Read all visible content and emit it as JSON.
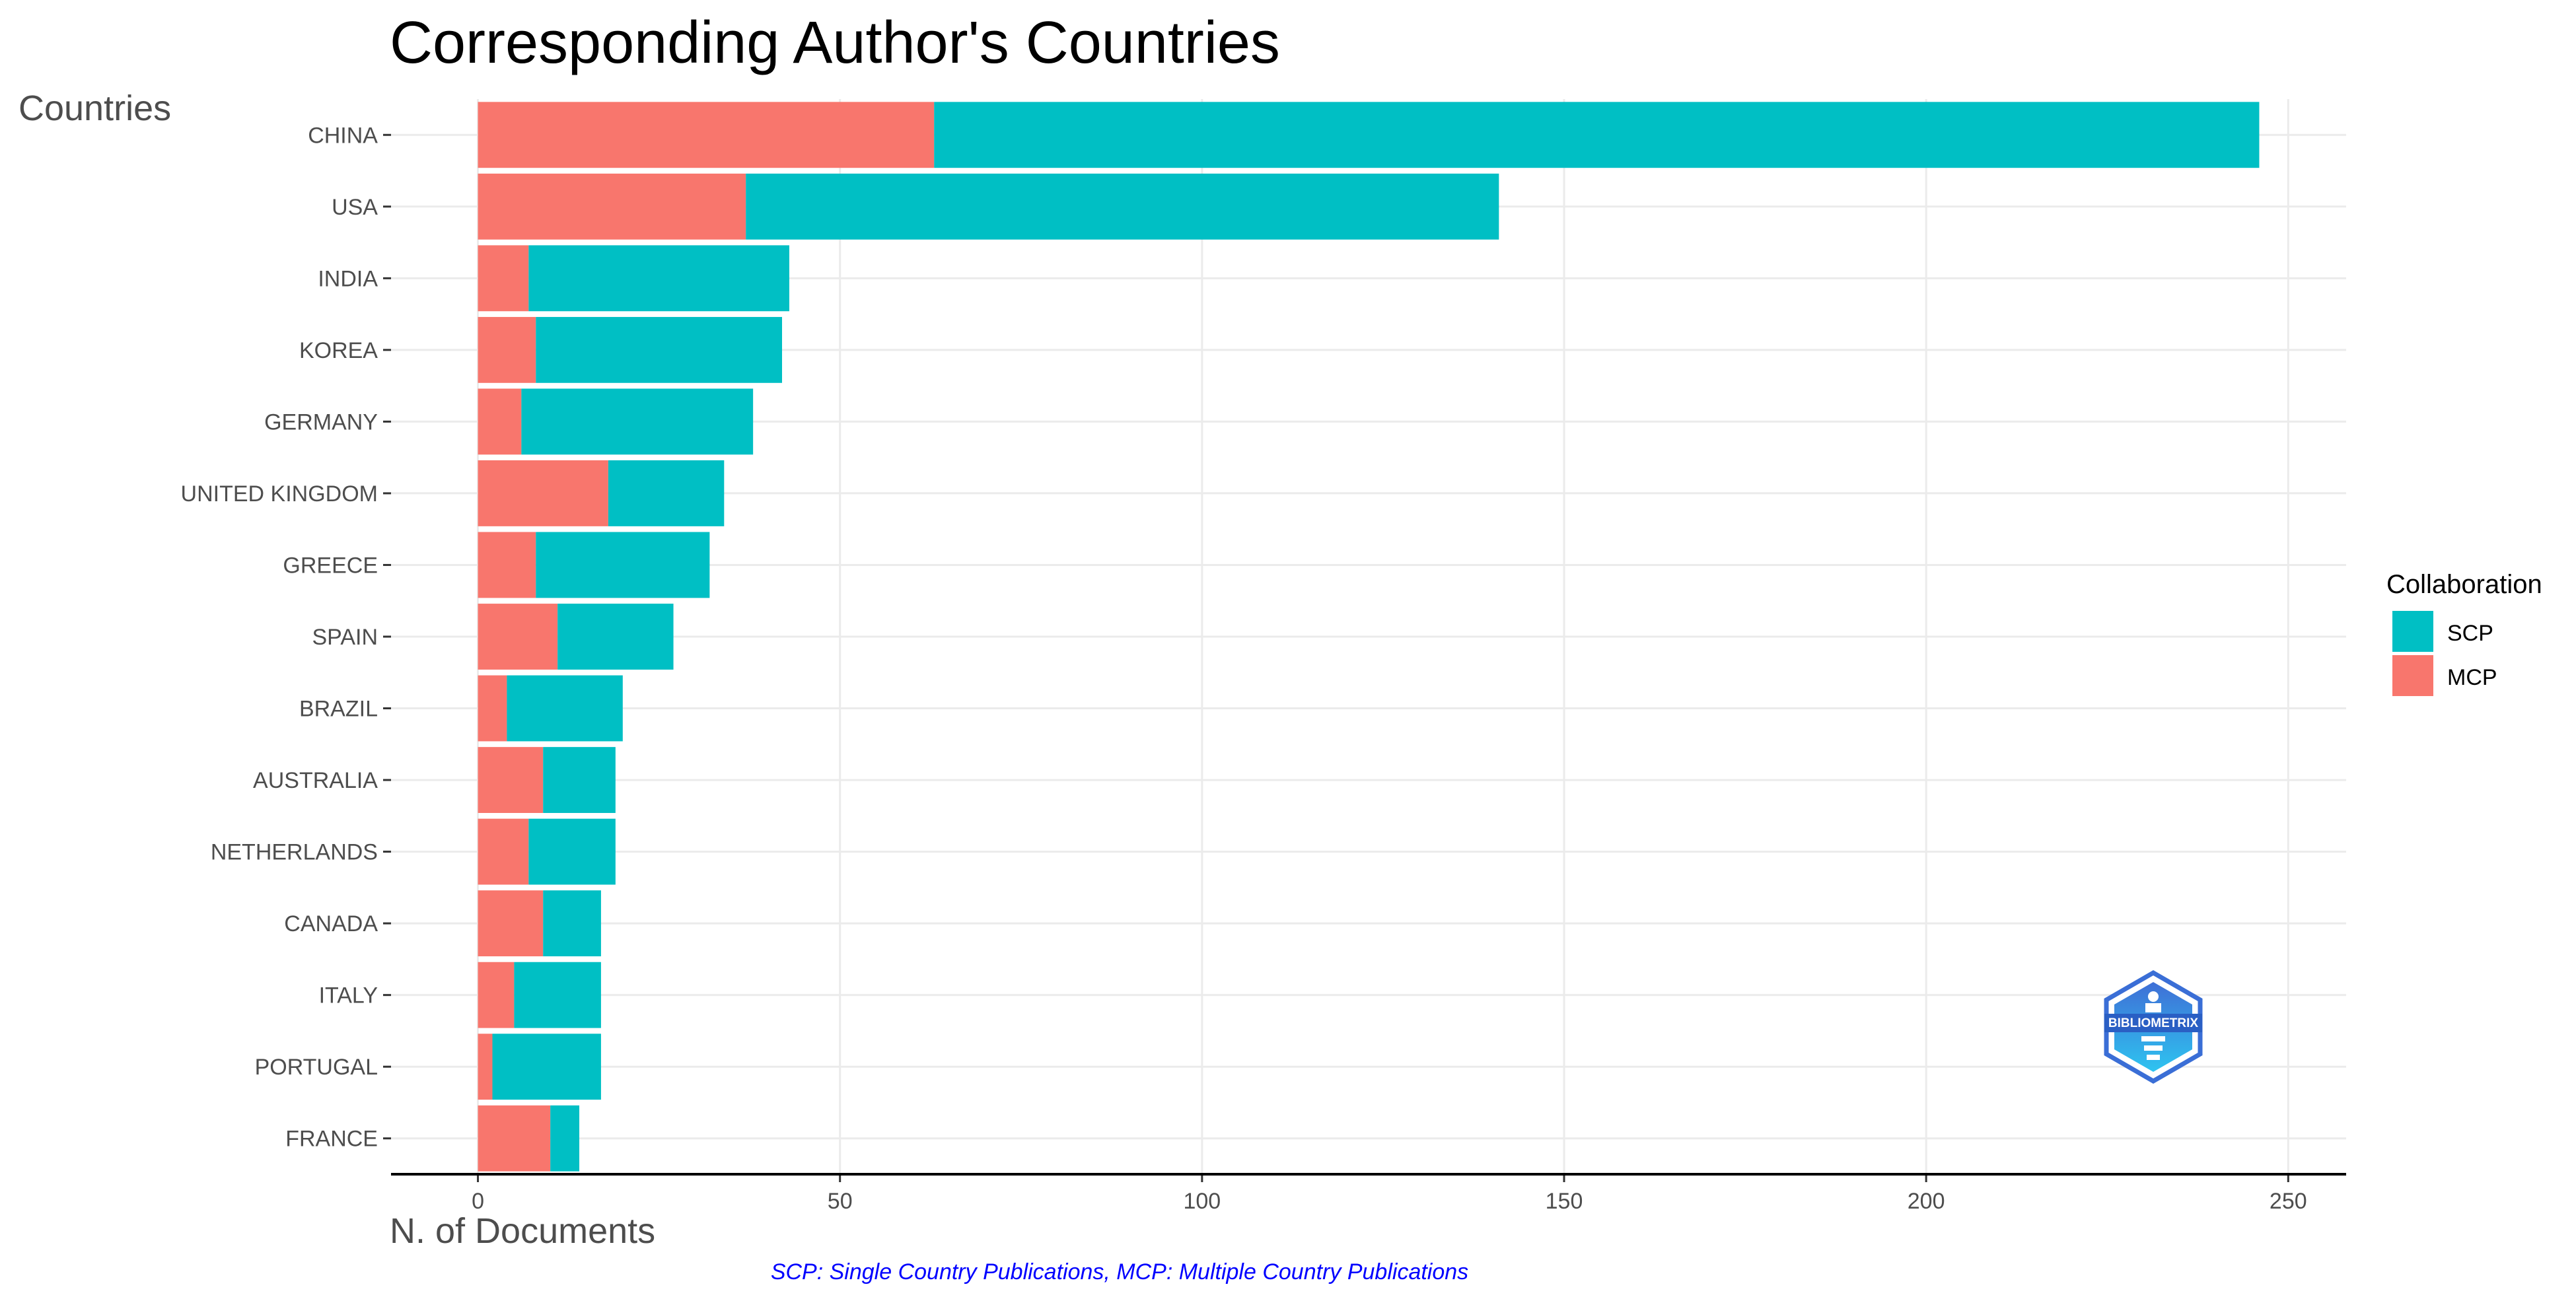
{
  "chart_data": {
    "type": "bar",
    "orientation": "horizontal",
    "stacked": true,
    "title": "Corresponding Author's Countries",
    "xlabel": "N. of Documents",
    "ylabel": "Countries",
    "caption": "SCP: Single Country Publications, MCP: Multiple Country Publications",
    "categories": [
      "CHINA",
      "USA",
      "INDIA",
      "KOREA",
      "GERMANY",
      "UNITED KINGDOM",
      "GREECE",
      "SPAIN",
      "BRAZIL",
      "AUSTRALIA",
      "NETHERLANDS",
      "CANADA",
      "ITALY",
      "PORTUGAL",
      "FRANCE"
    ],
    "series": [
      {
        "name": "MCP",
        "color": "#F8766D",
        "values": [
          63,
          37,
          7,
          8,
          6,
          18,
          8,
          11,
          4,
          9,
          7,
          9,
          5,
          2,
          10
        ]
      },
      {
        "name": "SCP",
        "color": "#00BFC4",
        "values": [
          183,
          104,
          36,
          34,
          32,
          16,
          24,
          16,
          16,
          10,
          12,
          8,
          12,
          15,
          4
        ]
      }
    ],
    "xlim": [
      -12,
      258
    ],
    "xticks": [
      0,
      50,
      100,
      150,
      200,
      250
    ],
    "grid": true,
    "legend": {
      "title": "Collaboration",
      "placement": "right",
      "entries": [
        {
          "label": "SCP",
          "color": "#00BFC4"
        },
        {
          "label": "MCP",
          "color": "#F8766D"
        }
      ]
    },
    "logo": {
      "text": "BIBLIOMETRIX",
      "icon": "bibliometrix-logo-icon"
    }
  }
}
